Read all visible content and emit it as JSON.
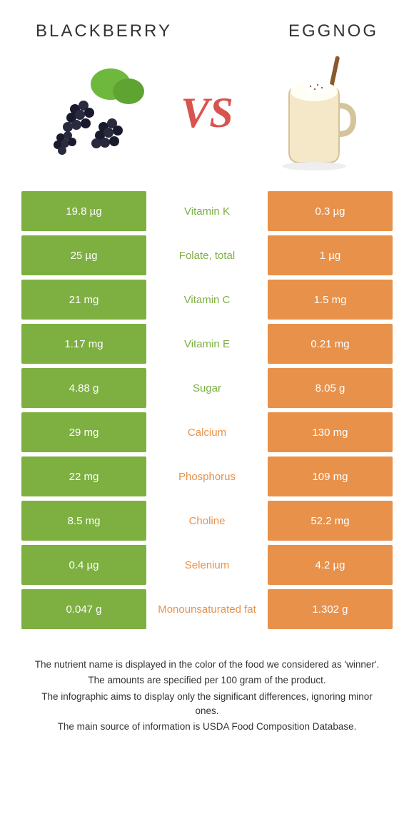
{
  "header": {
    "left_title": "BLACKBERRY",
    "right_title": "EGGNOG",
    "vs_text": "VS"
  },
  "colors": {
    "left_bg": "#7eb041",
    "right_bg": "#e8914a",
    "winner_left_text": "#7eb041",
    "winner_right_text": "#e8914a",
    "vs_color": "#d9534f"
  },
  "icons": {
    "left": "blackberry-illustration",
    "right": "eggnog-illustration"
  },
  "rows": [
    {
      "left": "19.8 µg",
      "label": "Vitamin K",
      "right": "0.3 µg",
      "winner": "left"
    },
    {
      "left": "25 µg",
      "label": "Folate, total",
      "right": "1 µg",
      "winner": "left"
    },
    {
      "left": "21 mg",
      "label": "Vitamin C",
      "right": "1.5 mg",
      "winner": "left"
    },
    {
      "left": "1.17 mg",
      "label": "Vitamin E",
      "right": "0.21 mg",
      "winner": "left"
    },
    {
      "left": "4.88 g",
      "label": "Sugar",
      "right": "8.05 g",
      "winner": "left"
    },
    {
      "left": "29 mg",
      "label": "Calcium",
      "right": "130 mg",
      "winner": "right"
    },
    {
      "left": "22 mg",
      "label": "Phosphorus",
      "right": "109 mg",
      "winner": "right"
    },
    {
      "left": "8.5 mg",
      "label": "Choline",
      "right": "52.2 mg",
      "winner": "right"
    },
    {
      "left": "0.4 µg",
      "label": "Selenium",
      "right": "4.2 µg",
      "winner": "right"
    },
    {
      "left": "0.047 g",
      "label": "Monounsaturated fat",
      "right": "1.302 g",
      "winner": "right"
    }
  ],
  "footnotes": [
    "The nutrient name is displayed in the color of the food we considered as 'winner'.",
    "The amounts are specified per 100 gram of the product.",
    "The infographic aims to display only the significant differences, ignoring minor ones.",
    "The main source of information is USDA Food Composition Database."
  ]
}
